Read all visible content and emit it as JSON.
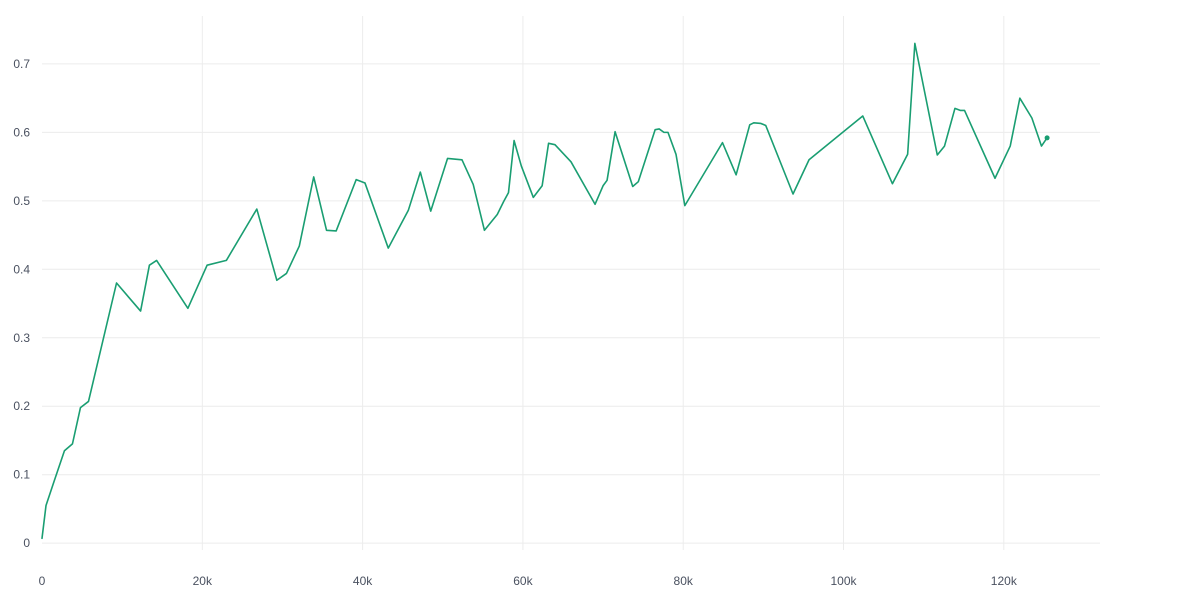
{
  "chart_data": {
    "type": "line",
    "title": "",
    "xlabel": "",
    "ylabel": "",
    "xlim": [
      0,
      132000
    ],
    "ylim": [
      -0.01,
      0.77
    ],
    "x_ticks": [
      0,
      20000,
      40000,
      60000,
      80000,
      100000,
      120000
    ],
    "x_tick_labels": [
      "0",
      "20k",
      "40k",
      "60k",
      "80k",
      "100k",
      "120k"
    ],
    "y_ticks": [
      0,
      0.1,
      0.2,
      0.3,
      0.4,
      0.5,
      0.6,
      0.7
    ],
    "y_tick_labels": [
      "0",
      "0.1",
      "0.2",
      "0.3",
      "0.4",
      "0.5",
      "0.6",
      "0.7"
    ],
    "grid": true,
    "legend": "none",
    "series": [
      {
        "color": "#1a9e72",
        "last_point_marker": true,
        "points": [
          [
            0,
            0.007
          ],
          [
            500,
            0.055
          ],
          [
            1500,
            0.09
          ],
          [
            2800,
            0.135
          ],
          [
            3800,
            0.145
          ],
          [
            4800,
            0.198
          ],
          [
            5800,
            0.207
          ],
          [
            9300,
            0.38
          ],
          [
            12300,
            0.339
          ],
          [
            13400,
            0.406
          ],
          [
            14300,
            0.413
          ],
          [
            18200,
            0.343
          ],
          [
            20600,
            0.406
          ],
          [
            23000,
            0.413
          ],
          [
            26800,
            0.488
          ],
          [
            29300,
            0.384
          ],
          [
            30500,
            0.394
          ],
          [
            32100,
            0.434
          ],
          [
            33900,
            0.535
          ],
          [
            35500,
            0.457
          ],
          [
            36700,
            0.456
          ],
          [
            39200,
            0.531
          ],
          [
            40300,
            0.526
          ],
          [
            43200,
            0.431
          ],
          [
            45700,
            0.486
          ],
          [
            47200,
            0.542
          ],
          [
            48500,
            0.485
          ],
          [
            50600,
            0.562
          ],
          [
            52400,
            0.56
          ],
          [
            53800,
            0.524
          ],
          [
            55200,
            0.457
          ],
          [
            56800,
            0.48
          ],
          [
            57600,
            0.499
          ],
          [
            58200,
            0.512
          ],
          [
            58900,
            0.588
          ],
          [
            59800,
            0.551
          ],
          [
            61300,
            0.505
          ],
          [
            62400,
            0.522
          ],
          [
            63200,
            0.584
          ],
          [
            64000,
            0.582
          ],
          [
            66000,
            0.557
          ],
          [
            69000,
            0.495
          ],
          [
            70000,
            0.522
          ],
          [
            70500,
            0.53
          ],
          [
            71500,
            0.601
          ],
          [
            73700,
            0.521
          ],
          [
            74400,
            0.528
          ],
          [
            76500,
            0.604
          ],
          [
            77000,
            0.605
          ],
          [
            77600,
            0.6
          ],
          [
            78100,
            0.6
          ],
          [
            79100,
            0.568
          ],
          [
            80200,
            0.493
          ],
          [
            84900,
            0.585
          ],
          [
            86600,
            0.538
          ],
          [
            88300,
            0.611
          ],
          [
            88800,
            0.614
          ],
          [
            89700,
            0.613
          ],
          [
            90300,
            0.61
          ],
          [
            93700,
            0.51
          ],
          [
            95700,
            0.56
          ],
          [
            102400,
            0.624
          ],
          [
            106100,
            0.525
          ],
          [
            108000,
            0.568
          ],
          [
            108900,
            0.73
          ],
          [
            111700,
            0.567
          ],
          [
            112600,
            0.58
          ],
          [
            113900,
            0.635
          ],
          [
            114600,
            0.632
          ],
          [
            115100,
            0.632
          ],
          [
            118900,
            0.533
          ],
          [
            120800,
            0.58
          ],
          [
            122000,
            0.65
          ],
          [
            123500,
            0.621
          ],
          [
            124700,
            0.58
          ],
          [
            125400,
            0.592
          ]
        ]
      }
    ]
  }
}
